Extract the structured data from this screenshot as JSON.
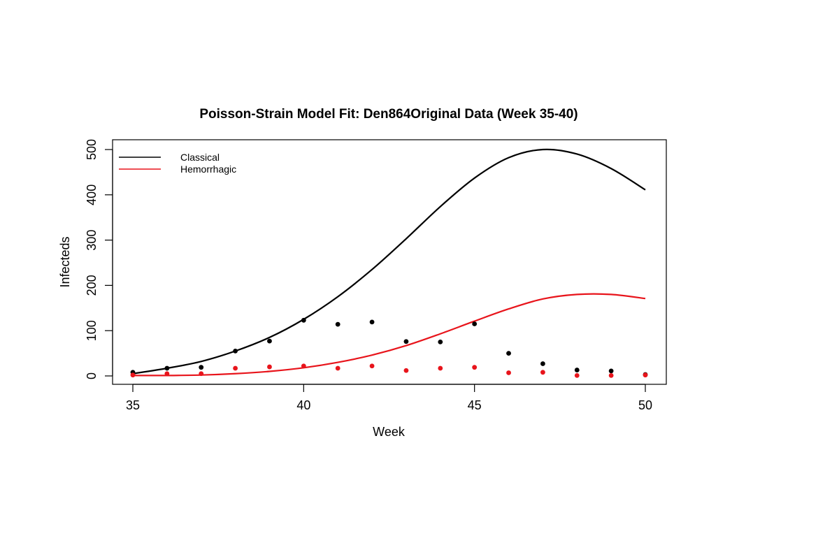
{
  "chart_data": {
    "type": "scatter",
    "title": "Poisson-Strain Model Fit: Den864Original Data (Week 35-40)",
    "xlabel": "Week",
    "ylabel": "Infecteds",
    "xlim": [
      35,
      50
    ],
    "ylim": [
      0,
      500
    ],
    "x_ticks": [
      35,
      40,
      45,
      50
    ],
    "y_ticks": [
      0,
      100,
      200,
      300,
      400,
      500
    ],
    "grid": false,
    "legend": {
      "position": "top-left",
      "entries": [
        "Classical",
        "Hemorrhagic"
      ]
    },
    "colors": {
      "Classical": "#000000",
      "Hemorrhagic": "#e8141b"
    },
    "series": [
      {
        "name": "Classical",
        "kind": "points",
        "x": [
          35,
          36,
          37,
          38,
          39,
          40,
          41,
          42,
          43,
          44,
          45,
          46,
          47,
          48,
          49,
          50
        ],
        "values": [
          8,
          17,
          19,
          55,
          77,
          123,
          114,
          119,
          76,
          75,
          115,
          50,
          27,
          13,
          11,
          3
        ]
      },
      {
        "name": "Hemorrhagic",
        "kind": "points",
        "x": [
          35,
          36,
          37,
          38,
          39,
          40,
          41,
          42,
          43,
          44,
          45,
          46,
          47,
          48,
          49,
          50
        ],
        "values": [
          2,
          5,
          5,
          17,
          20,
          22,
          17,
          22,
          12,
          17,
          19,
          7,
          8,
          1,
          1,
          2
        ]
      },
      {
        "name": "Classical",
        "kind": "line",
        "x": [
          35,
          36,
          37,
          38,
          39,
          40,
          41,
          42,
          43,
          44,
          45,
          46,
          47,
          48,
          49,
          50
        ],
        "values": [
          5,
          17,
          32,
          55,
          85,
          125,
          175,
          235,
          303,
          374,
          437,
          482,
          500,
          490,
          458,
          411
        ]
      },
      {
        "name": "Hemorrhagic",
        "kind": "line",
        "x": [
          35,
          36,
          37,
          38,
          39,
          40,
          41,
          42,
          43,
          44,
          45,
          46,
          47,
          48,
          49,
          50
        ],
        "values": [
          1,
          1,
          2,
          5,
          10,
          18,
          30,
          46,
          67,
          93,
          121,
          148,
          170,
          180,
          180,
          171
        ]
      }
    ]
  }
}
